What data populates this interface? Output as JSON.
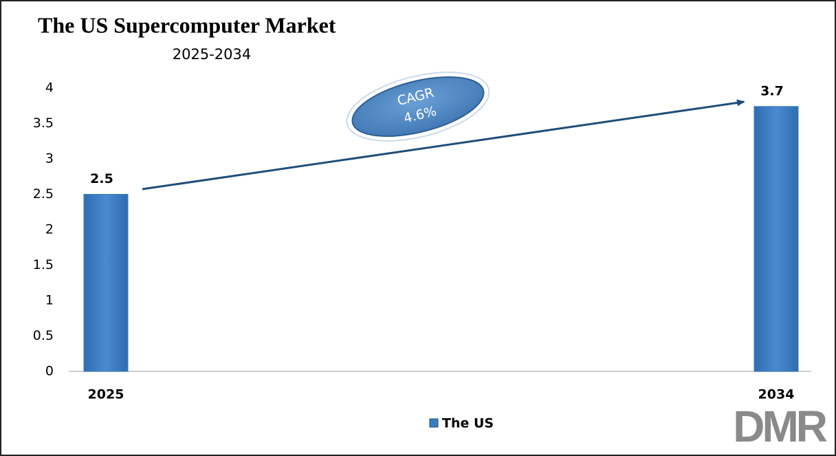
{
  "chart_data": {
    "type": "bar",
    "title": "The US Supercomputer Market",
    "subtitle": "2025-2034",
    "categories": [
      "2025",
      "2034"
    ],
    "series": [
      {
        "name": "The US",
        "color": "#3a7cc3",
        "values": [
          2.5,
          3.74
        ],
        "value_labels": [
          "2.5",
          "3.7"
        ]
      }
    ],
    "ylim": [
      0,
      4
    ],
    "yticks": [
      0,
      0.5,
      1,
      1.5,
      2,
      2.5,
      3,
      3.5,
      4
    ],
    "grid": false,
    "legend": "bottom",
    "annotations": [
      "CAGR",
      "4.6%"
    ],
    "logo": "DMR"
  }
}
